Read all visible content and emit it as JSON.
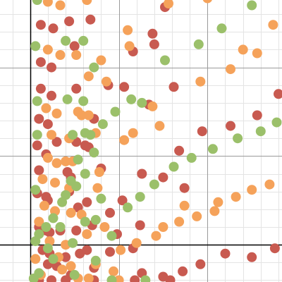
{
  "colors": {
    "red": "#c85a50",
    "orange": "#f5a25a",
    "green": "#9bc06a",
    "grid_major": "#9a9a9a",
    "grid_minor": "#e4e4e4",
    "axis": "#000000"
  },
  "chart_data": {
    "type": "scatter",
    "title": "",
    "xlabel": "",
    "ylabel": "",
    "xlim": [
      -1.7,
      14.2
    ],
    "ylim": [
      -2.1,
      13.8
    ],
    "grid": true,
    "major_grid_step": 5,
    "minor_grid_step": 1,
    "legend": "none",
    "series": [
      {
        "color_key": "red",
        "points": [
          [
            0.6,
            12.4
          ],
          [
            1.3,
            12.2
          ],
          [
            2.2,
            12.6
          ],
          [
            3.4,
            12.7
          ],
          [
            6.9,
            11.9
          ],
          [
            7.6,
            13.4
          ],
          [
            0.6,
            10.3
          ],
          [
            1.2,
            10.0
          ],
          [
            2.5,
            11.2
          ],
          [
            5.8,
            10.9
          ],
          [
            7.0,
            11.3
          ],
          [
            0.6,
            8.8
          ],
          [
            1.2,
            8.4
          ],
          [
            2.6,
            8.8
          ],
          [
            4.4,
            9.0
          ],
          [
            5.3,
            8.9
          ],
          [
            8.1,
            8.9
          ],
          [
            14.0,
            8.5
          ],
          [
            0.5,
            7.1
          ],
          [
            1.0,
            6.8
          ],
          [
            3.6,
            7.1
          ],
          [
            6.7,
            7.9
          ],
          [
            9.7,
            6.4
          ],
          [
            11.3,
            6.7
          ],
          [
            12.8,
            7.3
          ],
          [
            0.4,
            5.6
          ],
          [
            0.9,
            5.1
          ],
          [
            1.5,
            5.8
          ],
          [
            2.6,
            5.8
          ],
          [
            3.1,
            5.6
          ],
          [
            3.3,
            5.5
          ],
          [
            8.4,
            5.3
          ],
          [
            0.5,
            4.2
          ],
          [
            2.1,
            4.1
          ],
          [
            2.3,
            3.8
          ],
          [
            4.0,
            4.3
          ],
          [
            6.3,
            4.0
          ],
          [
            7.5,
            3.8
          ],
          [
            8.7,
            3.2
          ],
          [
            0.4,
            2.9
          ],
          [
            0.9,
            2.7
          ],
          [
            1.0,
            2.5
          ],
          [
            2.2,
            3.0
          ],
          [
            2.7,
            2.1
          ],
          [
            3.2,
            2.4
          ],
          [
            4.5,
            1.8
          ],
          [
            5.2,
            2.5
          ],
          [
            0.5,
            1.0
          ],
          [
            0.9,
            0.8
          ],
          [
            1.1,
            0.7
          ],
          [
            1.7,
            0.8
          ],
          [
            2.6,
            0.8
          ],
          [
            3.5,
            1.1
          ],
          [
            4.9,
            0.6
          ],
          [
            6.2,
            1.1
          ],
          [
            0.7,
            -0.3
          ],
          [
            1.1,
            -0.5
          ],
          [
            2.0,
            -0.7
          ],
          [
            2.8,
            -0.5
          ],
          [
            3.2,
            -0.3
          ],
          [
            4.5,
            -0.4
          ],
          [
            5.8,
            -0.2
          ],
          [
            1.0,
            -1.1
          ],
          [
            1.5,
            -1.2
          ],
          [
            2.3,
            -1.7
          ],
          [
            3.6,
            -1.3
          ],
          [
            6.3,
            -1.6
          ],
          [
            7.5,
            -1.8
          ],
          [
            8.6,
            -1.5
          ],
          [
            9.6,
            -1.1
          ],
          [
            11.0,
            -0.5
          ],
          [
            12.5,
            -0.7
          ],
          [
            13.8,
            -0.2
          ],
          [
            0.5,
            -2.0
          ],
          [
            1.2,
            -2.0
          ],
          [
            2.0,
            -2.0
          ],
          [
            3.6,
            -2.0
          ],
          [
            5.9,
            -2.0
          ],
          [
            7.9,
            -2.0
          ]
        ]
      },
      {
        "color_key": "orange",
        "points": [
          [
            1.0,
            13.7
          ],
          [
            1.7,
            13.5
          ],
          [
            3.2,
            13.8
          ],
          [
            7.8,
            13.6
          ],
          [
            10.0,
            13.9
          ],
          [
            5.5,
            12.1
          ],
          [
            13.7,
            12.4
          ],
          [
            1.0,
            11.0
          ],
          [
            1.7,
            10.7
          ],
          [
            2.6,
            10.7
          ],
          [
            4.0,
            10.4
          ],
          [
            5.6,
            11.2
          ],
          [
            12.0,
            11.0
          ],
          [
            3.3,
            9.5
          ],
          [
            4.3,
            9.2
          ],
          [
            9.6,
            9.2
          ],
          [
            11.3,
            9.9
          ],
          [
            12.8,
            10.8
          ],
          [
            0.9,
            7.7
          ],
          [
            1.5,
            7.4
          ],
          [
            2.7,
            7.5
          ],
          [
            2.9,
            7.3
          ],
          [
            3.3,
            7.3
          ],
          [
            6.9,
            7.8
          ],
          [
            7.3,
            6.7
          ],
          [
            1.2,
            6.2
          ],
          [
            2.2,
            6.0
          ],
          [
            3.7,
            6.3
          ],
          [
            5.3,
            5.9
          ],
          [
            5.8,
            6.3
          ],
          [
            1.0,
            4.9
          ],
          [
            1.5,
            4.6
          ],
          [
            2.0,
            4.7
          ],
          [
            2.4,
            4.7
          ],
          [
            3.9,
            4.1
          ],
          [
            0.7,
            3.7
          ],
          [
            1.4,
            3.5
          ],
          [
            2.2,
            3.2
          ],
          [
            3.8,
            3.2
          ],
          [
            8.7,
            2.2
          ],
          [
            10.6,
            2.4
          ],
          [
            11.6,
            2.7
          ],
          [
            12.5,
            3.1
          ],
          [
            13.5,
            3.4
          ],
          [
            0.8,
            2.2
          ],
          [
            1.4,
            1.9
          ],
          [
            2.3,
            1.8
          ],
          [
            2.9,
            1.7
          ],
          [
            4.2,
            1.0
          ],
          [
            7.5,
            1.0
          ],
          [
            8.4,
            1.3
          ],
          [
            9.4,
            1.6
          ],
          [
            10.4,
            1.9
          ],
          [
            0.5,
            1.3
          ],
          [
            1.1,
            0.2
          ],
          [
            2.0,
            0.0
          ],
          [
            3.2,
            0.6
          ],
          [
            5.1,
            -0.3
          ],
          [
            6.0,
            0.1
          ],
          [
            7.1,
            0.5
          ],
          [
            0.3,
            -0.8
          ],
          [
            1.6,
            -0.7
          ],
          [
            2.3,
            -1.2
          ],
          [
            3.7,
            -1.1
          ],
          [
            4.7,
            -1.5
          ],
          [
            0.6,
            -1.7
          ],
          [
            1.8,
            -1.4
          ],
          [
            2.7,
            -1.9
          ],
          [
            3.3,
            -1.9
          ],
          [
            5.0,
            -2.0
          ]
        ]
      },
      {
        "color_key": "green",
        "points": [
          [
            0.4,
            13.8
          ],
          [
            12.5,
            13.5
          ],
          [
            2.0,
            11.5
          ],
          [
            3.0,
            11.5
          ],
          [
            10.8,
            12.2
          ],
          [
            9.5,
            11.3
          ],
          [
            0.3,
            11.2
          ],
          [
            7.6,
            10.4
          ],
          [
            3.6,
            10.0
          ],
          [
            0.4,
            8.1
          ],
          [
            2.1,
            8.2
          ],
          [
            3.0,
            8.1
          ],
          [
            5.7,
            8.2
          ],
          [
            6.3,
            8.0
          ],
          [
            4.8,
            7.5
          ],
          [
            13.9,
            6.9
          ],
          [
            4.1,
            6.8
          ],
          [
            2.4,
            6.2
          ],
          [
            3.1,
            6.3
          ],
          [
            3.4,
            6.2
          ],
          [
            0.4,
            6.2
          ],
          [
            13.0,
            6.4
          ],
          [
            11.7,
            6.0
          ],
          [
            10.3,
            5.4
          ],
          [
            9.1,
            4.9
          ],
          [
            3.6,
            5.2
          ],
          [
            2.7,
            4.8
          ],
          [
            8.1,
            4.4
          ],
          [
            3.1,
            4.0
          ],
          [
            2.3,
            3.6
          ],
          [
            7.0,
            3.4
          ],
          [
            2.6,
            3.3
          ],
          [
            6.2,
            2.7
          ],
          [
            0.3,
            3.1
          ],
          [
            2.0,
            2.8
          ],
          [
            1.8,
            2.4
          ],
          [
            4.0,
            2.6
          ],
          [
            5.5,
            2.1
          ],
          [
            1.3,
            1.5
          ],
          [
            1.7,
            1.0
          ],
          [
            3.7,
            1.4
          ],
          [
            0.9,
            1.0
          ],
          [
            3.1,
            1.3
          ],
          [
            2.4,
            0.1
          ],
          [
            4.6,
            0.5
          ],
          [
            0.5,
            0.6
          ],
          [
            0.3,
            0.2
          ],
          [
            1.0,
            -0.2
          ],
          [
            3.7,
            -0.9
          ],
          [
            0.5,
            -1.6
          ],
          [
            2.5,
            -1.7
          ],
          [
            1.3,
            -0.8
          ],
          [
            0.2,
            -1.9
          ],
          [
            4.6,
            -2.0
          ],
          [
            6.5,
            -2.0
          ]
        ]
      }
    ]
  }
}
